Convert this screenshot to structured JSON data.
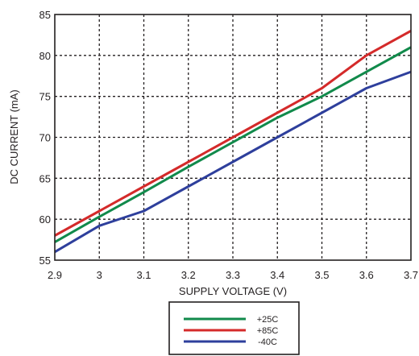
{
  "chart_data": {
    "type": "line",
    "title": "",
    "xlabel": "SUPPLY VOLTAGE (V)",
    "ylabel": "DC CURRENT (mA)",
    "xlim": [
      2.9,
      3.7
    ],
    "ylim": [
      55,
      85
    ],
    "x_ticks": [
      "2.9",
      "3",
      "3.1",
      "3.2",
      "3.3",
      "3.4",
      "3.5",
      "3.6",
      "3.7"
    ],
    "y_ticks": [
      "55",
      "60",
      "65",
      "70",
      "75",
      "80",
      "85"
    ],
    "grid": true,
    "legend_position": "bottom-center, below x-axis",
    "x": [
      2.9,
      3.0,
      3.1,
      3.2,
      3.3,
      3.4,
      3.5,
      3.6,
      3.7
    ],
    "series": [
      {
        "name": "+25C",
        "color": "#118a4b",
        "values": [
          57.2,
          60.3,
          63.3,
          66.4,
          69.4,
          72.4,
          75.0,
          78.0,
          81.0
        ]
      },
      {
        "name": "+85C",
        "color": "#d42a2a",
        "values": [
          58.0,
          61.0,
          64.0,
          67.0,
          70.0,
          73.0,
          76.0,
          80.0,
          83.0
        ]
      },
      {
        "name": "-40C",
        "color": "#2e3f9c",
        "values": [
          56.0,
          59.2,
          61.0,
          64.0,
          67.0,
          70.0,
          73.0,
          76.0,
          78.0
        ]
      }
    ]
  }
}
